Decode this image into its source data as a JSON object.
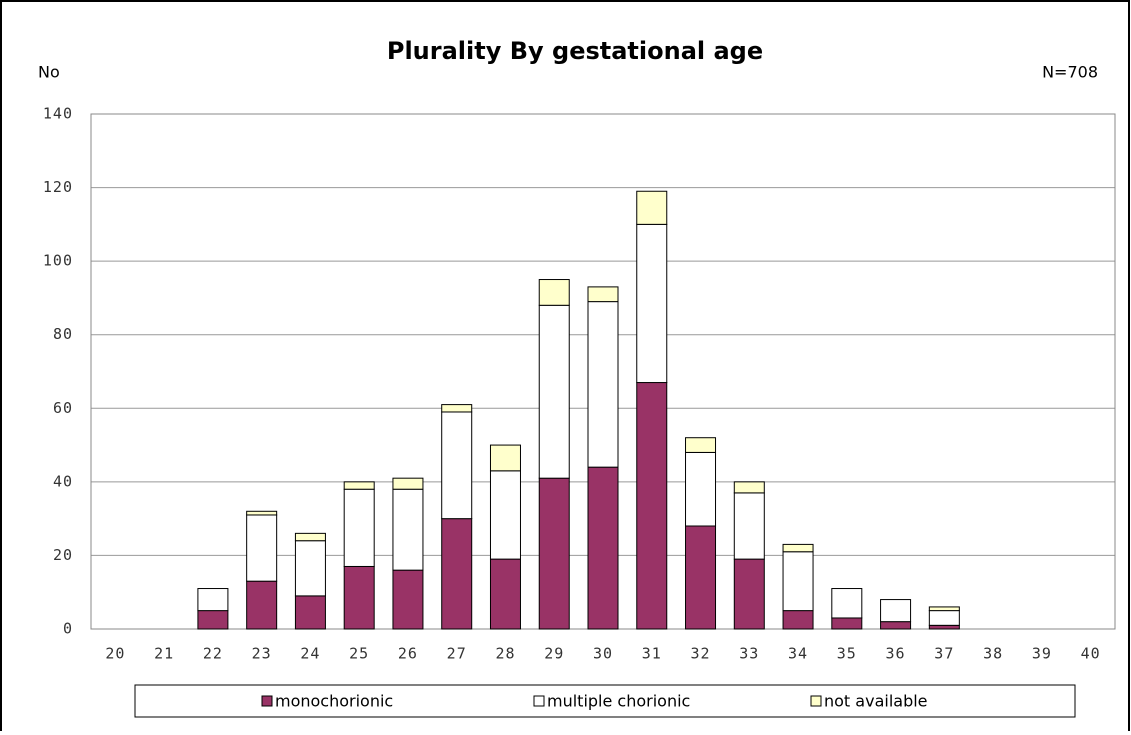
{
  "chart_data": {
    "type": "stacked_bar",
    "title": "Plurality By gestational age",
    "y_label": "No",
    "annotation": "N=708",
    "categories": [
      "20",
      "21",
      "22",
      "23",
      "24",
      "25",
      "26",
      "27",
      "28",
      "29",
      "30",
      "31",
      "32",
      "33",
      "34",
      "35",
      "36",
      "37",
      "38",
      "39",
      "40"
    ],
    "series": [
      {
        "name": "monochorionic",
        "color": "#993366",
        "values": [
          0,
          0,
          5,
          13,
          9,
          17,
          16,
          30,
          19,
          41,
          44,
          67,
          28,
          19,
          5,
          3,
          2,
          1,
          0,
          0,
          0
        ]
      },
      {
        "name": "multiple chorionic",
        "color": "#ffffff",
        "values": [
          0,
          0,
          6,
          18,
          15,
          21,
          22,
          29,
          24,
          47,
          45,
          43,
          20,
          18,
          16,
          8,
          6,
          4,
          0,
          0,
          0
        ]
      },
      {
        "name": "not available",
        "color": "#ffffcc",
        "values": [
          0,
          0,
          0,
          1,
          2,
          2,
          3,
          2,
          7,
          7,
          4,
          9,
          4,
          3,
          2,
          0,
          0,
          1,
          0,
          0,
          0
        ]
      }
    ],
    "ylim": [
      0,
      140
    ],
    "yticks": [
      0,
      20,
      40,
      60,
      80,
      100,
      120,
      140
    ],
    "grid": true,
    "legend": "bottom"
  }
}
